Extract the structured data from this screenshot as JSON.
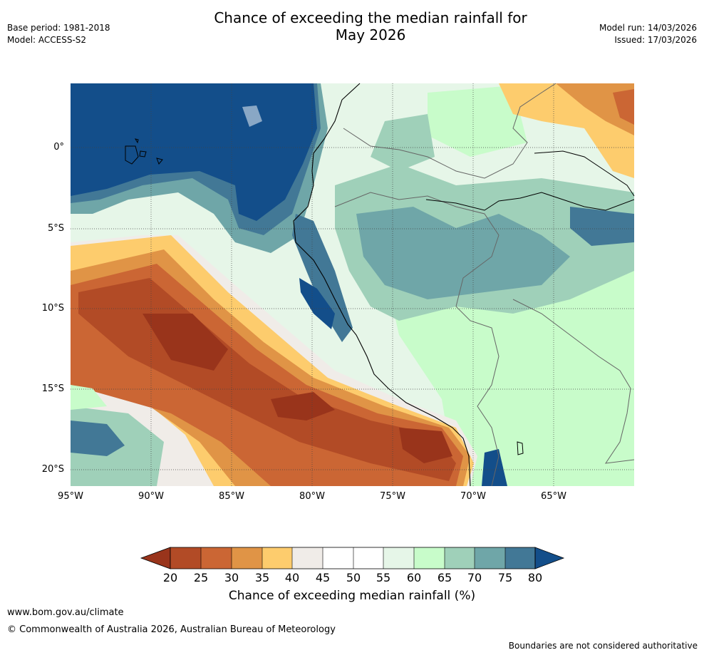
{
  "header": {
    "title_line1": "Chance of exceeding the median rainfall for",
    "title_line2": "May 2026",
    "base_period": "Base period: 1981-2018",
    "model": "Model: ACCESS-S2",
    "model_run": "Model run: 14/03/2026",
    "issued": "Issued: 17/03/2026"
  },
  "map": {
    "region": "Western South America and eastern Pacific",
    "lat_labels": [
      "0°",
      "5°S",
      "10°S",
      "15°S",
      "20°S"
    ],
    "lon_labels": [
      "95°W",
      "90°W",
      "85°W",
      "80°W",
      "75°W",
      "70°W",
      "65°W"
    ],
    "lat_range": [
      -21,
      4
    ],
    "lon_range": [
      -95,
      -60
    ]
  },
  "colorbar": {
    "ticks": [
      "20",
      "25",
      "30",
      "35",
      "40",
      "45",
      "50",
      "55",
      "60",
      "65",
      "70",
      "75",
      "80"
    ],
    "colors": [
      "#99341b",
      "#b24b26",
      "#cb6634",
      "#e09446",
      "#fdcc6d",
      "#f0ece8",
      "#ffffff",
      "#ffffff",
      "#e6f6e8",
      "#c8fcca",
      "#9fd0b9",
      "#6fa6a8",
      "#427896",
      "#134e8a"
    ],
    "label": "Chance of exceeding median rainfall (%)"
  },
  "footer": {
    "url": "www.bom.gov.au/climate",
    "copyright": "© Commonwealth of Australia 2026, Australian Bureau of Meteorology",
    "disclaimer": "Boundaries are not considered authoritative"
  }
}
